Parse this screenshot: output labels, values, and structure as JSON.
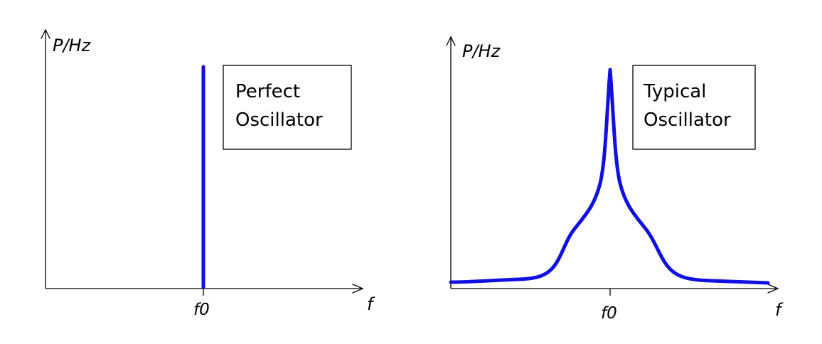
{
  "left_panel": {
    "y_axis_label": "P/Hz",
    "x_axis_label": "f",
    "tick_label": "f0",
    "box_line1": "Perfect",
    "box_line2": "Oscillator",
    "signal_shape": "single vertical line at f0 (ideal spectral line)"
  },
  "right_panel": {
    "y_axis_label": "P/Hz",
    "x_axis_label": "f",
    "tick_label": "f0",
    "box_line1": "Typical",
    "box_line2": "Oscillator",
    "signal_shape": "sharp peak at f0 with broadened skirts"
  },
  "colors": {
    "signal": "#1010e0",
    "axes": "#000000",
    "background": "#ffffff"
  }
}
